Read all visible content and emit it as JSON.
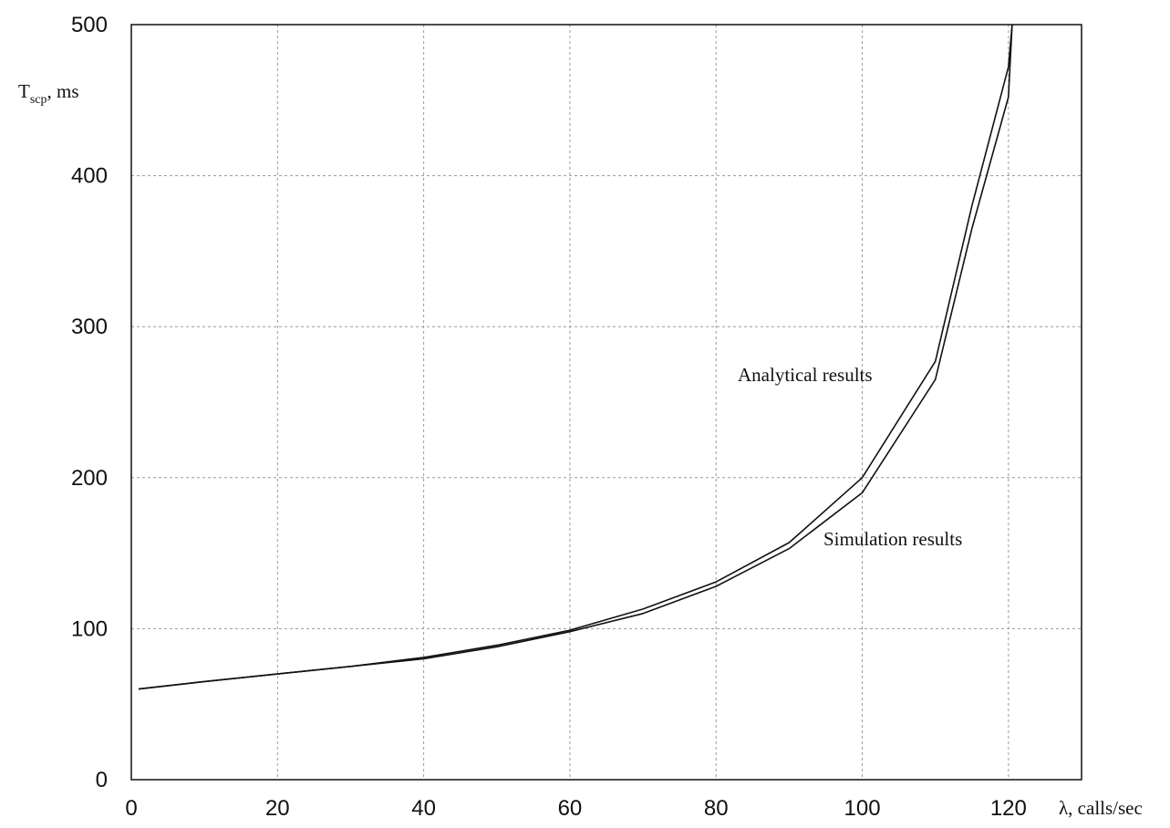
{
  "chart_data": {
    "type": "line",
    "title": "",
    "xlabel": "λ, calls/sec",
    "ylabel": {
      "main": "T",
      "sub": "scp",
      "suffix": ", ms"
    },
    "xlim": [
      0,
      130
    ],
    "ylim": [
      0,
      500
    ],
    "x_ticks": [
      0,
      20,
      40,
      60,
      80,
      100,
      120
    ],
    "y_ticks": [
      0,
      100,
      200,
      300,
      400,
      500
    ],
    "grid": true,
    "legend": "none",
    "series": [
      {
        "name": "Analytical results",
        "x": [
          1,
          10,
          20,
          30,
          40,
          50,
          60,
          70,
          80,
          90,
          100,
          110,
          115,
          120,
          120.5
        ],
        "y": [
          60,
          65,
          70,
          75,
          81,
          89,
          99,
          113,
          131,
          157,
          200,
          277,
          380,
          472,
          500
        ]
      },
      {
        "name": "Simulation results",
        "x": [
          1,
          10,
          20,
          30,
          40,
          50,
          60,
          70,
          80,
          90,
          100,
          110,
          115,
          120,
          120.5
        ],
        "y": [
          60,
          65,
          70,
          75,
          80,
          88,
          98,
          110,
          128,
          153,
          190,
          265,
          365,
          452,
          500
        ]
      }
    ],
    "annotations": [
      "Analytical results",
      "Simulation results"
    ],
    "colors": {
      "line": "#111111",
      "grid": "#9a9a9a",
      "background": "#ffffff"
    }
  }
}
